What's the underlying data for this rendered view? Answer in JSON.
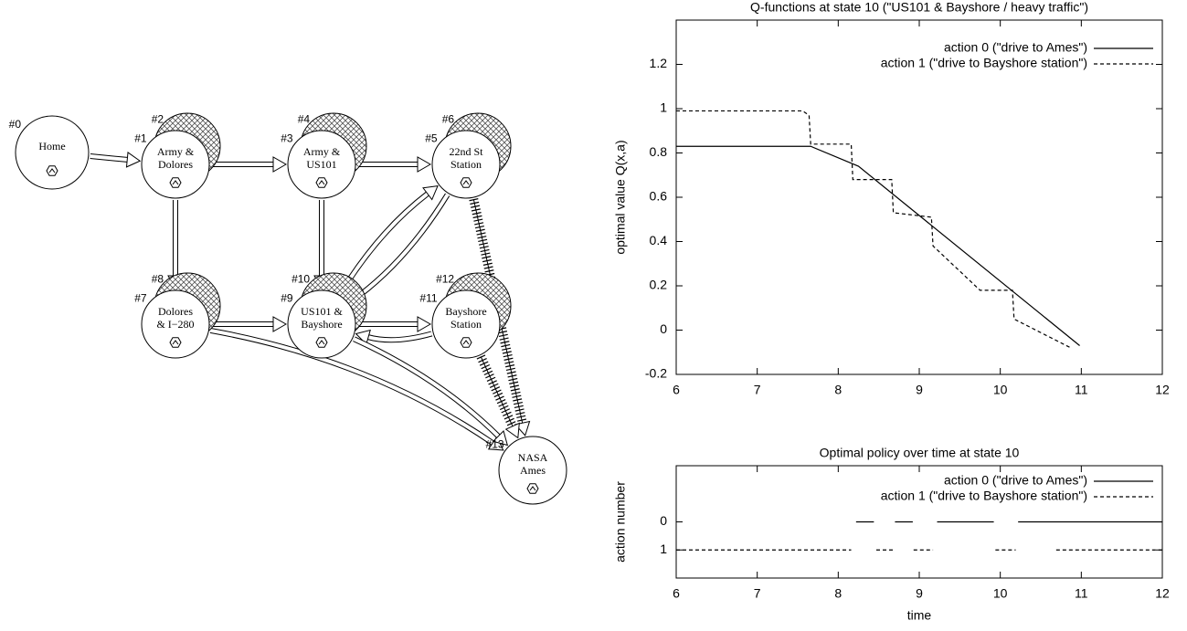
{
  "diagram": {
    "nodes": [
      {
        "id": "#0",
        "label": [
          "Home"
        ]
      },
      {
        "id": "#1",
        "shadow_id": "#2",
        "label": [
          "Army &",
          "Dolores"
        ]
      },
      {
        "id": "#3",
        "shadow_id": "#4",
        "label": [
          "Army &",
          "US101"
        ]
      },
      {
        "id": "#5",
        "shadow_id": "#6",
        "label": [
          "22nd St",
          "Station"
        ]
      },
      {
        "id": "#7",
        "shadow_id": "#8",
        "label": [
          "Dolores",
          "& I−280"
        ]
      },
      {
        "id": "#9",
        "shadow_id": "#10",
        "label": [
          "US101 &",
          "Bayshore"
        ]
      },
      {
        "id": "#11",
        "shadow_id": "#12",
        "label": [
          "Bayshore",
          "Station"
        ]
      },
      {
        "id": "#13",
        "label": [
          "NASA",
          "Ames"
        ]
      }
    ]
  },
  "chart_data": [
    {
      "type": "line",
      "title": "Q-functions at state 10 (\"US101 & Bayshore / heavy traffic\")",
      "y_label": "optimal value Q(x,a)",
      "xlim": [
        6,
        12
      ],
      "xticks": [
        6,
        7,
        8,
        9,
        10,
        11,
        12
      ],
      "ylim": [
        -0.2,
        1.4
      ],
      "yticks": [
        -0.2,
        0,
        0.2,
        0.4,
        0.6,
        0.8,
        1,
        1.2
      ],
      "legend": "top-right",
      "series": [
        {
          "name": "action 0 (\"drive to Ames\")",
          "color": "#000000",
          "dash": "solid",
          "x": [
            6,
            7.66,
            8.25,
            10.98
          ],
          "values": [
            0.83,
            0.83,
            0.74,
            -0.07
          ]
        },
        {
          "name": "action 1 (\"drive to Bayshore station\")",
          "color": "#000000",
          "dash": "dashed",
          "x": [
            6,
            7.56,
            7.64,
            7.66,
            8.16,
            8.18,
            8.66,
            8.68,
            9.15,
            9.17,
            9.75,
            10.15,
            10.17,
            10.87
          ],
          "values": [
            0.99,
            0.99,
            0.97,
            0.84,
            0.84,
            0.68,
            0.68,
            0.53,
            0.51,
            0.38,
            0.18,
            0.18,
            0.05,
            -0.08
          ]
        }
      ]
    },
    {
      "type": "line",
      "title": "Optimal policy over time at state 10",
      "x_label": "time",
      "y_label": "action number",
      "xlim": [
        6,
        12
      ],
      "xticks": [
        6,
        7,
        8,
        9,
        10,
        11,
        12
      ],
      "ylim": [
        2,
        -2
      ],
      "yticks": [
        0,
        1
      ],
      "legend": "top-right",
      "series": [
        {
          "name": "action 0 (\"drive to Ames\")",
          "color": "#000000",
          "dash": "solid",
          "x": [
            8.22,
            8.44,
            null,
            8.7,
            8.92,
            null,
            9.22,
            9.92,
            null,
            10.22,
            12
          ],
          "values": [
            0,
            0,
            null,
            0,
            0,
            null,
            0,
            0,
            null,
            0,
            0
          ]
        },
        {
          "name": "action 1 (\"drive to Bayshore station\")",
          "color": "#000000",
          "dash": "dashed",
          "x": [
            6,
            8.16,
            null,
            8.47,
            8.7,
            null,
            8.93,
            9.17,
            null,
            9.94,
            10.19,
            null,
            10.69,
            12
          ],
          "values": [
            1,
            1,
            null,
            1,
            1,
            null,
            1,
            1,
            null,
            1,
            1,
            null,
            1,
            1
          ]
        }
      ]
    }
  ]
}
